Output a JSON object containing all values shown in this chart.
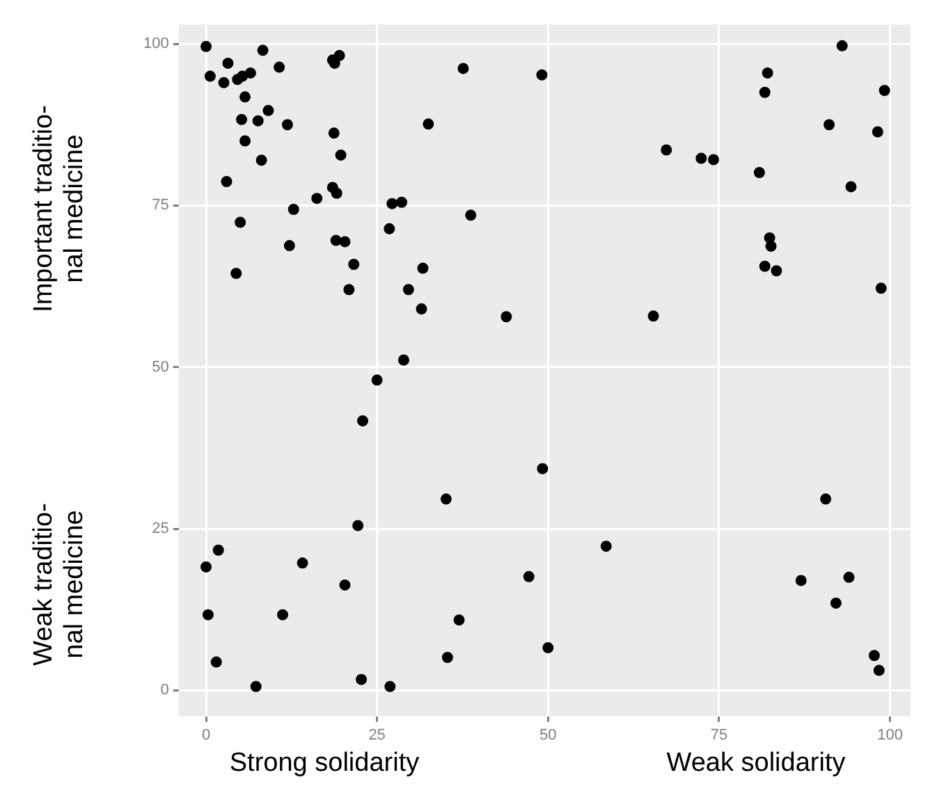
{
  "chart_data": {
    "type": "scatter",
    "x": [
      0,
      8.3,
      3.2,
      0.6,
      2.6,
      4.6,
      5.3,
      6.5,
      10.7,
      18.5,
      19.5,
      18.8,
      5.7,
      9.1,
      5.2,
      7.6,
      11.9,
      5.7,
      8.1,
      18.7,
      19.7,
      3,
      18.5,
      19.1,
      16.2,
      12.8,
      5,
      27.2,
      28.6,
      26.8,
      19,
      20.3,
      12.2,
      38.7,
      32.5,
      37.6,
      49.1,
      21.6,
      4.4,
      31.7,
      20.9,
      29.6,
      31.5,
      43.9,
      28.9,
      25,
      93,
      82.1,
      81.7,
      99.2,
      91.1,
      98.2,
      67.3,
      72.4,
      74.2,
      80.9,
      94.3,
      82.4,
      82.6,
      81.7,
      83.4,
      98.7,
      65.4,
      22.9,
      49.2,
      35.1,
      90.6,
      22.2,
      1.8,
      0,
      14.1,
      58.5,
      20.3,
      47.2,
      87,
      94,
      92.1,
      0.3,
      11.2,
      37,
      50,
      1.5,
      35.3,
      22.7,
      7.3,
      26.9,
      97.7,
      98.4
    ],
    "series": [
      {
        "color": "#000000",
        "values": [
          99.6,
          99,
          97,
          95,
          94,
          94.5,
          95,
          95.5,
          96.4,
          97.5,
          98.2,
          97,
          91.8,
          89.7,
          88.3,
          88.1,
          87.5,
          85,
          82,
          86.2,
          82.8,
          78.7,
          77.8,
          76.9,
          76.1,
          74.4,
          72.4,
          75.3,
          75.5,
          71.4,
          69.6,
          69.4,
          68.8,
          73.5,
          87.6,
          96.2,
          95.2,
          65.9,
          64.5,
          65.3,
          62,
          62,
          59,
          57.8,
          51.1,
          48,
          99.7,
          95.5,
          92.5,
          92.8,
          87.5,
          86.4,
          83.6,
          82.3,
          82.1,
          80.1,
          77.9,
          70,
          68.7,
          65.6,
          64.9,
          62.2,
          57.9,
          41.7,
          34.3,
          29.6,
          29.6,
          25.5,
          21.7,
          19.1,
          19.7,
          22.3,
          16.3,
          17.6,
          17,
          17.5,
          13.5,
          11.7,
          11.7,
          10.9,
          6.6,
          4.4,
          5.1,
          1.7,
          0.6,
          0.6,
          5.4,
          3.1
        ]
      }
    ],
    "xlim": [
      -4,
      103
    ],
    "ylim": [
      -4,
      103
    ],
    "xticks": [
      0,
      25,
      50,
      75,
      100
    ],
    "yticks": [
      0,
      25,
      50,
      75,
      100
    ],
    "grid": true,
    "marker": "circle",
    "annotations": [
      "Strong solidarity",
      "Weak solidarity",
      "Important traditio-\nnal medicine",
      "Weak traditio-\nnal medicine"
    ]
  }
}
